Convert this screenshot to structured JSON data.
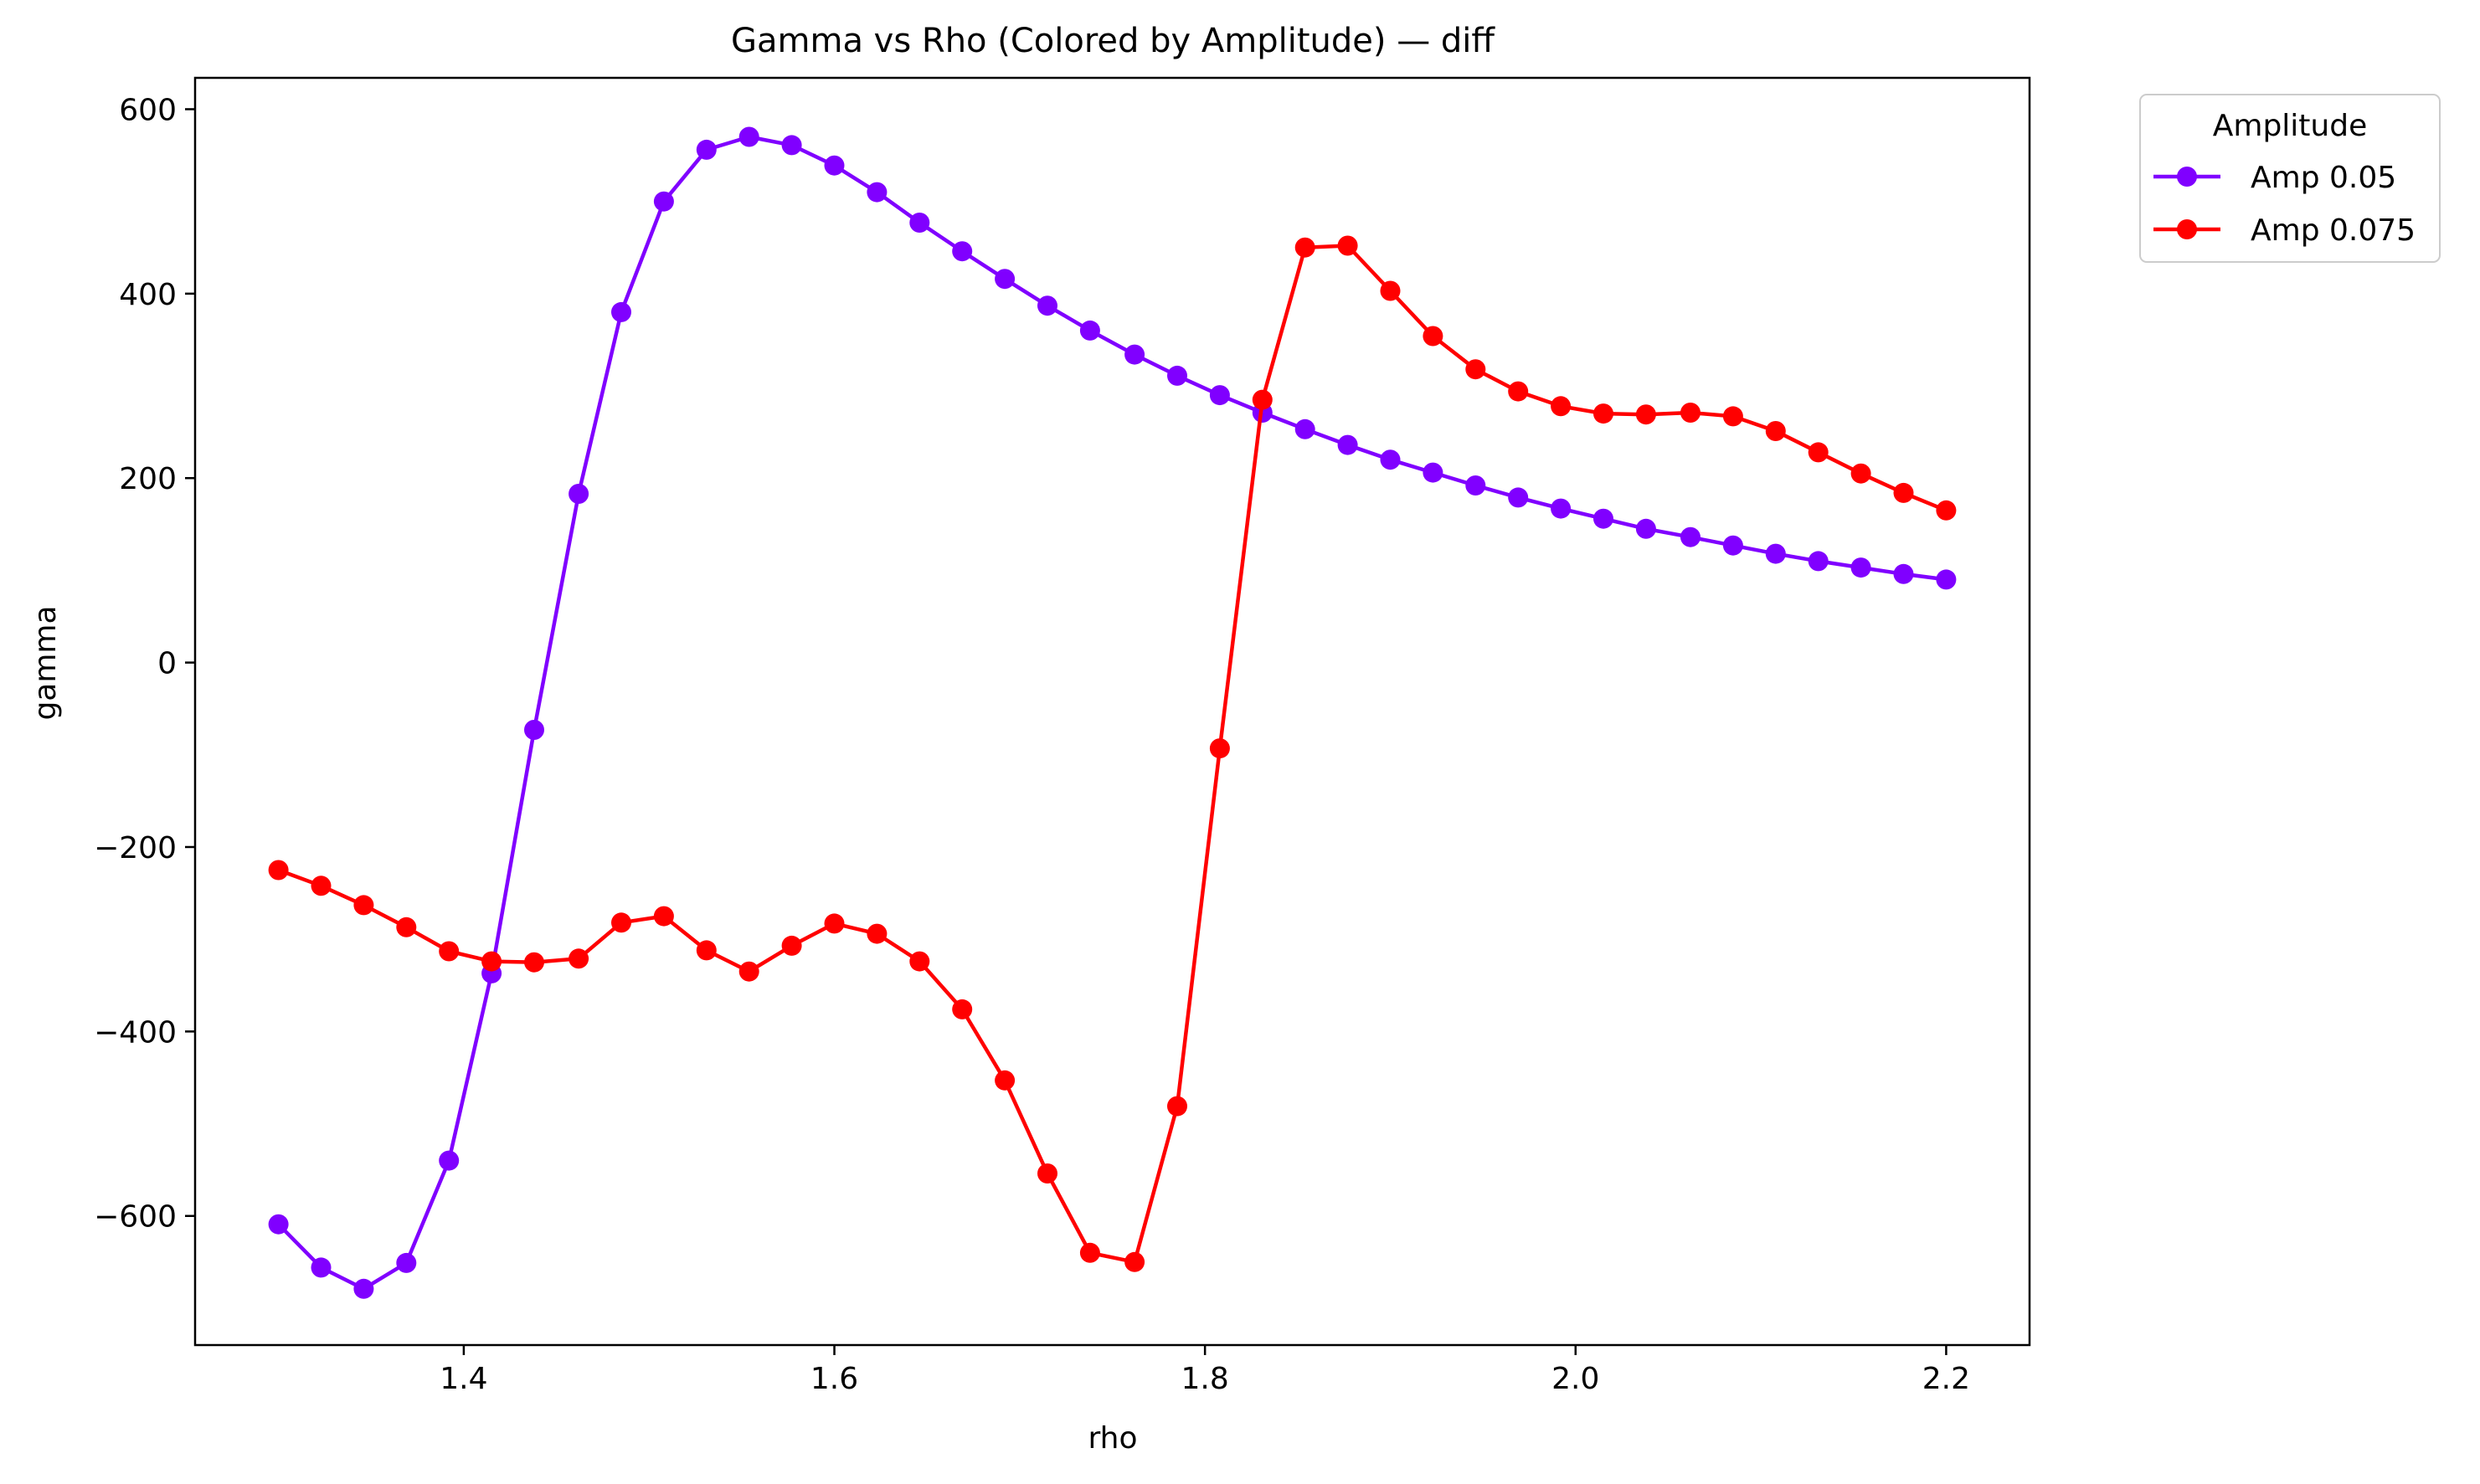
{
  "chart_data": {
    "type": "line",
    "title": "Gamma vs Rho (Colored by Amplitude) — diff",
    "xlabel": "rho",
    "ylabel": "gamma",
    "xlim": [
      1.255,
      2.245
    ],
    "ylim": [
      -740,
      634
    ],
    "xticks": [
      1.4,
      1.6,
      1.8,
      2.0,
      2.2
    ],
    "xtick_labels": [
      "1.4",
      "1.6",
      "1.8",
      "2.0",
      "2.2"
    ],
    "yticks": [
      -600,
      -400,
      -200,
      0,
      200,
      400,
      600
    ],
    "ytick_labels": [
      "−600",
      "−400",
      "−200",
      "0",
      "200",
      "400",
      "600"
    ],
    "grid": false,
    "legend": {
      "title": "Amplitude",
      "placement": "outside-top-right"
    },
    "x": [
      1.3,
      1.323,
      1.346,
      1.369,
      1.392,
      1.415,
      1.438,
      1.462,
      1.485,
      1.508,
      1.531,
      1.554,
      1.577,
      1.6,
      1.623,
      1.646,
      1.669,
      1.692,
      1.715,
      1.738,
      1.762,
      1.785,
      1.808,
      1.831,
      1.854,
      1.877,
      1.9,
      1.923,
      1.946,
      1.969,
      1.992,
      2.015,
      2.038,
      2.062,
      2.085,
      2.108,
      2.131,
      2.154,
      2.177,
      2.2
    ],
    "series": [
      {
        "name": "Amp 0.05",
        "color": "#8000ff",
        "values": [
          -609,
          -656,
          -679,
          -651,
          -540,
          -337,
          -73,
          183,
          380,
          500,
          556,
          570,
          561,
          539,
          510,
          477,
          446,
          416,
          387,
          360,
          334,
          311,
          290,
          271,
          253,
          236,
          220,
          206,
          192,
          179,
          167,
          156,
          145,
          136,
          127,
          118,
          110,
          103,
          96,
          90
        ]
      },
      {
        "name": "Amp 0.075",
        "color": "#ff0000",
        "values": [
          -225,
          -242,
          -263,
          -287,
          -313,
          -324,
          -325,
          -321,
          -282,
          -275,
          -312,
          -335,
          -307,
          -283,
          -294,
          -324,
          -376,
          -453,
          -554,
          -640,
          -650,
          -481,
          -93,
          285,
          450,
          452,
          403,
          354,
          318,
          294,
          278,
          270,
          269,
          271,
          267,
          251,
          228,
          205,
          184,
          165
        ]
      }
    ]
  }
}
